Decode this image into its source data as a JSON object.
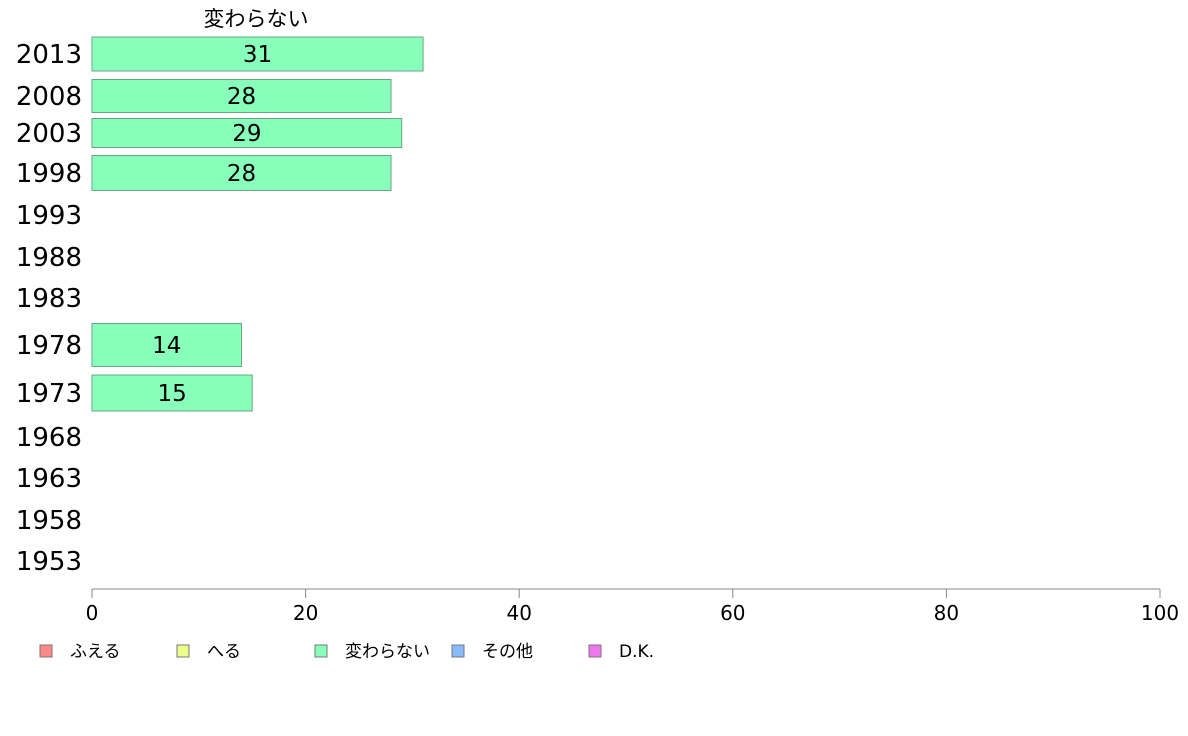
{
  "chart_data": {
    "type": "bar",
    "orientation": "horizontal",
    "title": "変わらない",
    "categories": [
      "2013",
      "2008",
      "2003",
      "1998",
      "1993",
      "1988",
      "1983",
      "1978",
      "1973",
      "1968",
      "1963",
      "1958",
      "1953"
    ],
    "series": [
      {
        "name": "変わらない",
        "color": "#88ffbb",
        "values": [
          31,
          28,
          29,
          28,
          null,
          null,
          null,
          14,
          15,
          null,
          null,
          null,
          null
        ],
        "labels": [
          "31",
          "28",
          "29",
          "28",
          "",
          "",
          "",
          "14",
          "15",
          "",
          "",
          "",
          ""
        ]
      }
    ],
    "xlim": [
      0,
      100
    ],
    "xticks": [
      0,
      20,
      40,
      60,
      80,
      100
    ],
    "legend": {
      "placement": "bottom-left",
      "items": [
        {
          "label": "ふえる",
          "color": "#ff8888"
        },
        {
          "label": "へる",
          "color": "#eeff88"
        },
        {
          "label": "変わらない",
          "color": "#88ffbb"
        },
        {
          "label": "その他",
          "color": "#88bbff"
        },
        {
          "label": "D.K.",
          "color": "#ee77ee"
        }
      ]
    },
    "grid": false
  }
}
